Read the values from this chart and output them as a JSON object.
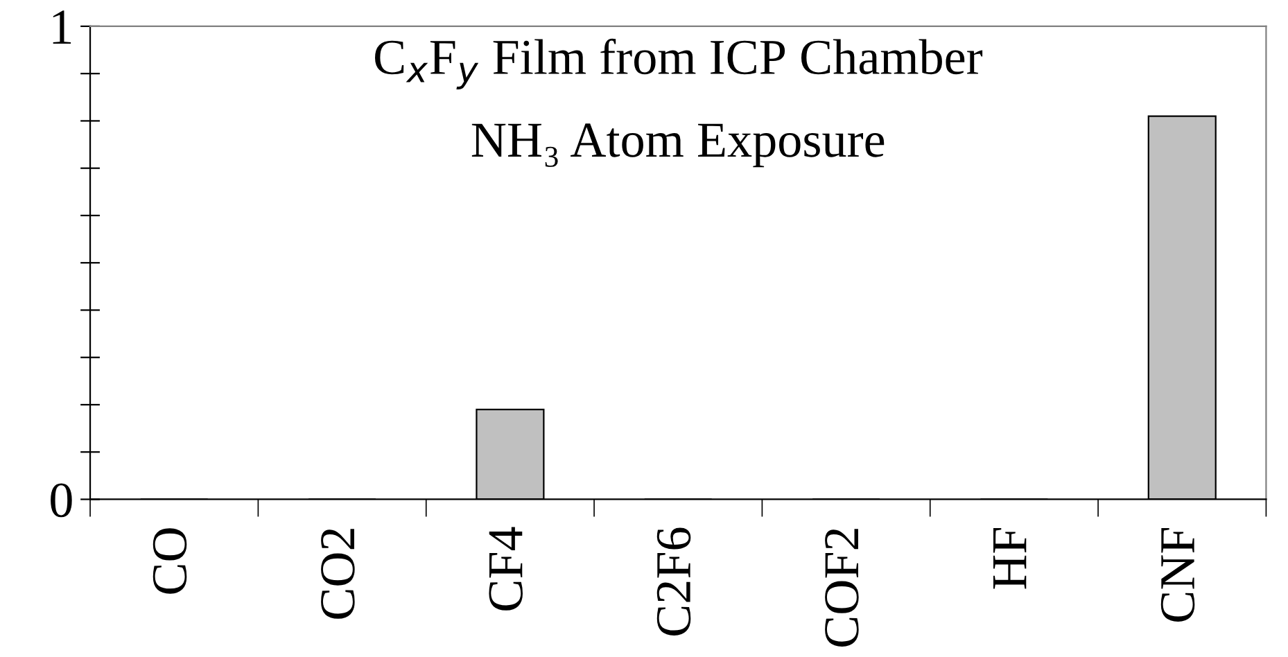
{
  "chart_data": {
    "type": "bar",
    "categories": [
      "CO",
      "CO2",
      "CF4",
      "C2F6",
      "COF2",
      "HF",
      "CNF"
    ],
    "values": [
      0,
      0,
      0.19,
      0,
      0,
      0,
      0.81
    ],
    "color": "#c0c0c0",
    "ylim": [
      0,
      1
    ],
    "yticks": [
      0,
      {
        "value": 0.1,
        "label": null
      },
      {
        "value": 0.2,
        "label": null
      },
      {
        "value": 0.3,
        "label": null
      },
      {
        "value": 0.4,
        "label": null
      },
      {
        "value": 0.5,
        "label": null
      },
      {
        "value": 0.6,
        "label": null
      },
      {
        "value": 0.7,
        "label": null
      },
      {
        "value": 0.8,
        "label": null
      },
      {
        "value": 0.9,
        "label": null
      },
      1
    ],
    "annotations": [
      "C$_{x}$F$_{y}$ Film from ICP Chamber",
      "NH₃ Atom Exposure"
    ],
    "grid": false
  }
}
